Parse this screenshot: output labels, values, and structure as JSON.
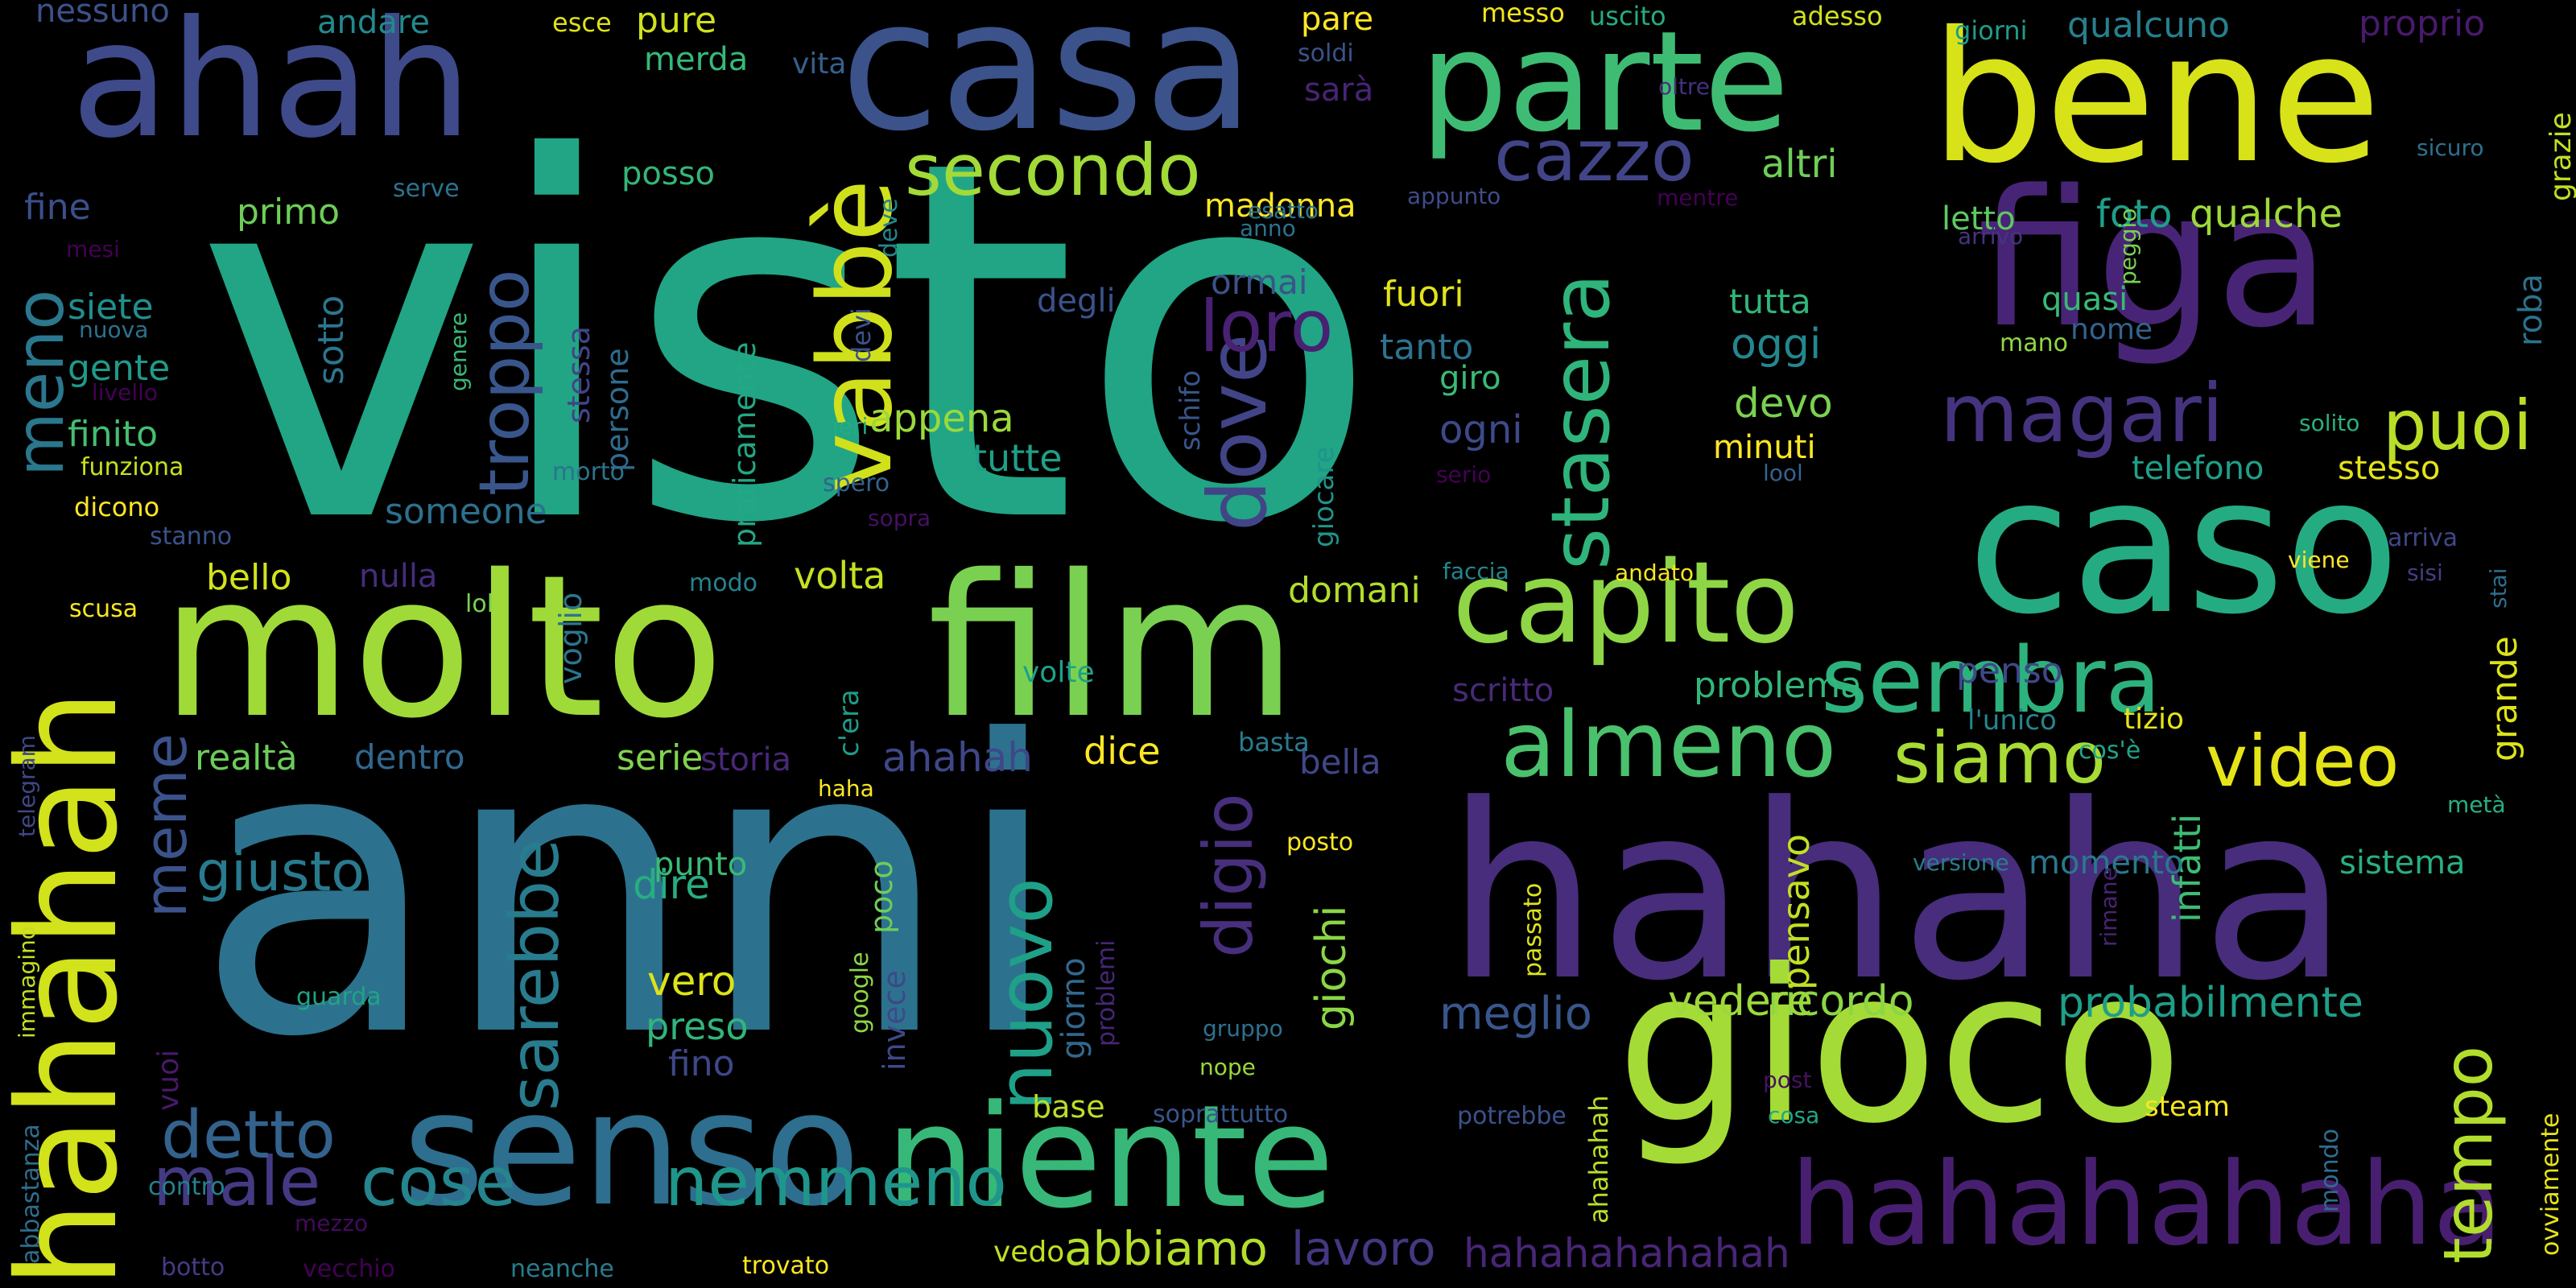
{
  "palette": [
    "#440154",
    "#482878",
    "#3e4a89",
    "#31688e",
    "#26828e",
    "#1f9e89",
    "#35b779",
    "#6ece58",
    "#b5de2b",
    "#fde725"
  ],
  "words": [
    {
      "text": "visto",
      "color": "#21a585"
    },
    {
      "text": "anni",
      "color": "#2c728e"
    },
    {
      "text": "hahaha",
      "color": "#472d7b"
    },
    {
      "text": "molto",
      "color": "#a0da39"
    },
    {
      "text": "film",
      "color": "#7ad151"
    },
    {
      "text": "casa",
      "color": "#3b528b"
    },
    {
      "text": "gioco",
      "color": "#a5db36"
    },
    {
      "text": "caso",
      "color": "#25ab82"
    },
    {
      "text": "figa",
      "color": "#482476"
    },
    {
      "text": "bene",
      "color": "#d8e219"
    },
    {
      "text": "ahah",
      "color": "#3e4a89"
    },
    {
      "text": "senso",
      "color": "#2e6e8e"
    },
    {
      "text": "niente",
      "color": "#37b878"
    },
    {
      "text": "parte",
      "color": "#3fbc73"
    },
    {
      "text": "hahahah",
      "color": "#d2e21b"
    },
    {
      "text": "hahahahaha",
      "color": "#481f70"
    },
    {
      "text": "capito",
      "color": "#8ed645"
    },
    {
      "text": "almeno",
      "color": "#4ac16d"
    },
    {
      "text": "sembra",
      "color": "#2db27d"
    },
    {
      "text": "vabbè",
      "color": "#d0e11c"
    },
    {
      "text": "magari",
      "color": "#46337f"
    },
    {
      "text": "siamo",
      "color": "#a8db34"
    },
    {
      "text": "video",
      "color": "#e5e419"
    },
    {
      "text": "secondo",
      "color": "#a2da37"
    },
    {
      "text": "cazzo",
      "color": "#414487"
    },
    {
      "text": "stasera",
      "color": "#2fb47c"
    },
    {
      "text": "puoi",
      "color": "#bade28"
    },
    {
      "text": "dove",
      "color": "#414487"
    },
    {
      "text": "troppo",
      "color": "#39568c"
    },
    {
      "text": "loro",
      "color": "#482173"
    },
    {
      "text": "meno",
      "color": "#2a778e"
    },
    {
      "text": "male",
      "color": "#443a83"
    },
    {
      "text": "cose",
      "color": "#25848e"
    },
    {
      "text": "nemmeno",
      "color": "#1f968b"
    },
    {
      "text": "tempo",
      "color": "#b2dd2d"
    },
    {
      "text": "nuovo",
      "color": "#1fa088"
    },
    {
      "text": "digio",
      "color": "#472f7d"
    },
    {
      "text": "sarebbe",
      "color": "#287c8e"
    },
    {
      "text": "detto",
      "color": "#33628d"
    },
    {
      "text": "meme",
      "color": "#3b528b"
    },
    {
      "text": "giusto",
      "color": "#297a8e"
    },
    {
      "text": "abbiamo",
      "color": "#b5de2b"
    },
    {
      "text": "lavoro",
      "color": "#453781"
    },
    {
      "text": "hahahahahahah",
      "color": "#482677"
    },
    {
      "text": "ricordo",
      "color": "#8bd646"
    },
    {
      "text": "vedere",
      "color": "#9dd93b"
    },
    {
      "text": "probabilmente",
      "color": "#1f9e89"
    },
    {
      "text": "meglio",
      "color": "#39568c"
    },
    {
      "text": "giochi",
      "color": "#8bd646"
    },
    {
      "text": "pensavo",
      "color": "#c2df23"
    },
    {
      "text": "infatti",
      "color": "#3dbc74"
    },
    {
      "text": "grande",
      "color": "#dde318"
    },
    {
      "text": "sistema",
      "color": "#29af7f"
    },
    {
      "text": "momento",
      "color": "#2a788e"
    },
    {
      "text": "problema",
      "color": "#32b67a"
    },
    {
      "text": "penso",
      "color": "#3f4889"
    },
    {
      "text": "tizio",
      "color": "#e7e419"
    },
    {
      "text": "l'unico",
      "color": "#25848e"
    },
    {
      "text": "scritto",
      "color": "#482979"
    },
    {
      "text": "dice",
      "color": "#fde725"
    },
    {
      "text": "bella",
      "color": "#404688"
    },
    {
      "text": "basta",
      "color": "#297b8e"
    },
    {
      "text": "ahahah",
      "color": "#3f4788"
    },
    {
      "text": "storia",
      "color": "#482878"
    },
    {
      "text": "serie",
      "color": "#81d34d"
    },
    {
      "text": "realtà",
      "color": "#6ccd5a"
    },
    {
      "text": "dentro",
      "color": "#31688e"
    },
    {
      "text": "volta",
      "color": "#c8e020"
    },
    {
      "text": "c'era",
      "color": "#1e9c89"
    },
    {
      "text": "volte",
      "color": "#1fa188"
    },
    {
      "text": "appena",
      "color": "#9bd93c"
    },
    {
      "text": "tutte",
      "color": "#1f9f88"
    },
    {
      "text": "fuori",
      "color": "#e2e418"
    },
    {
      "text": "ormai",
      "color": "#3b528b"
    },
    {
      "text": "tanto",
      "color": "#2c738e"
    },
    {
      "text": "giro",
      "color": "#3aba76"
    },
    {
      "text": "ogni",
      "color": "#3e4989"
    },
    {
      "text": "tutta",
      "color": "#31b57b"
    },
    {
      "text": "oggi",
      "color": "#24878e"
    },
    {
      "text": "devo",
      "color": "#7ad151"
    },
    {
      "text": "minuti",
      "color": "#fde725"
    },
    {
      "text": "altri",
      "color": "#6ece58"
    },
    {
      "text": "madonna",
      "color": "#fde725"
    },
    {
      "text": "foto",
      "color": "#1f9e89"
    },
    {
      "text": "qualche",
      "color": "#9dd93b"
    },
    {
      "text": "letto",
      "color": "#5ec962"
    },
    {
      "text": "telefono",
      "color": "#1fa088"
    },
    {
      "text": "stesso",
      "color": "#e5e419"
    },
    {
      "text": "nome",
      "color": "#33638d"
    },
    {
      "text": "quasi",
      "color": "#38b977"
    },
    {
      "text": "roba",
      "color": "#2c728e"
    },
    {
      "text": "domani",
      "color": "#b2dd2d"
    },
    {
      "text": "bello",
      "color": "#d2e21b"
    },
    {
      "text": "nulla",
      "color": "#472c7a"
    },
    {
      "text": "someone",
      "color": "#2d708e"
    },
    {
      "text": "finito",
      "color": "#44bf70"
    },
    {
      "text": "gente",
      "color": "#1f9a8a"
    },
    {
      "text": "siete",
      "color": "#218f8d"
    },
    {
      "text": "fine",
      "color": "#3c4f8a"
    },
    {
      "text": "primo",
      "color": "#6ece58"
    },
    {
      "text": "sotto",
      "color": "#2a768e"
    },
    {
      "text": "posso",
      "color": "#34b679"
    },
    {
      "text": "vita",
      "color": "#35608d"
    },
    {
      "text": "merda",
      "color": "#37b878"
    },
    {
      "text": "pure",
      "color": "#d0e11c"
    },
    {
      "text": "andare",
      "color": "#23898e"
    },
    {
      "text": "nessuno",
      "color": "#3b528b"
    },
    {
      "text": "esce",
      "color": "#dde318"
    },
    {
      "text": "pare",
      "color": "#fde725"
    },
    {
      "text": "soldi",
      "color": "#3b528b"
    },
    {
      "text": "sarà",
      "color": "#482475"
    },
    {
      "text": "messo",
      "color": "#f1e51d"
    },
    {
      "text": "uscito",
      "color": "#25ac82"
    },
    {
      "text": "adesso",
      "color": "#d2e21b"
    },
    {
      "text": "giorni",
      "color": "#1e9d89"
    },
    {
      "text": "qualcuno",
      "color": "#277f8e"
    },
    {
      "text": "proprio",
      "color": "#481a6c"
    },
    {
      "text": "oltre",
      "color": "#46307e"
    },
    {
      "text": "grazie",
      "color": "#c0df25"
    },
    {
      "text": "sicuro",
      "color": "#2d718e"
    },
    {
      "text": "esatto",
      "color": "#2b748e"
    },
    {
      "text": "appunto",
      "color": "#3e4c8a"
    },
    {
      "text": "anno",
      "color": "#2c728e"
    },
    {
      "text": "mentre",
      "color": "#440154"
    },
    {
      "text": "arrivo",
      "color": "#46337f"
    },
    {
      "text": "peggio",
      "color": "#7ad151"
    },
    {
      "text": "mano",
      "color": "#8fd744"
    },
    {
      "text": "solito",
      "color": "#2ab07f"
    },
    {
      "text": "lool",
      "color": "#33638d"
    },
    {
      "text": "arriva",
      "color": "#3f4788"
    },
    {
      "text": "sisi",
      "color": "#433e85"
    },
    {
      "text": "stai",
      "color": "#2e6e8e"
    },
    {
      "text": "viene",
      "color": "#fde725"
    },
    {
      "text": "andato",
      "color": "#f6e620"
    },
    {
      "text": "faccia",
      "color": "#24868e"
    },
    {
      "text": "serio",
      "color": "#440154"
    },
    {
      "text": "metà",
      "color": "#29af7f"
    },
    {
      "text": "cos'è",
      "color": "#20a386"
    },
    {
      "text": "versione",
      "color": "#287d8e"
    },
    {
      "text": "haha",
      "color": "#fde725"
    },
    {
      "text": "posto",
      "color": "#fbe723"
    },
    {
      "text": "passato",
      "color": "#dde318"
    },
    {
      "text": "rimane",
      "color": "#482374"
    },
    {
      "text": "ovviamente",
      "color": "#e7e419"
    },
    {
      "text": "mondo",
      "color": "#2f6c8e"
    },
    {
      "text": "steam",
      "color": "#f8e621"
    },
    {
      "text": "post",
      "color": "#471063"
    },
    {
      "text": "cosa",
      "color": "#22a785"
    },
    {
      "text": "potrebbe",
      "color": "#3b528b"
    },
    {
      "text": "soprattutto",
      "color": "#39568c"
    },
    {
      "text": "ahahahah",
      "color": "#bade28"
    },
    {
      "text": "nope",
      "color": "#98d83e"
    },
    {
      "text": "gruppo",
      "color": "#2d718e"
    },
    {
      "text": "base",
      "color": "#bade28"
    },
    {
      "text": "vedo",
      "color": "#c2df23"
    },
    {
      "text": "trovato",
      "color": "#fde725"
    },
    {
      "text": "neanche",
      "color": "#287c8e"
    },
    {
      "text": "vecchio",
      "color": "#440154"
    },
    {
      "text": "botto",
      "color": "#443b84"
    },
    {
      "text": "mezzo",
      "color": "#450a5c"
    },
    {
      "text": "contro",
      "color": "#26818e"
    },
    {
      "text": "abbastanza",
      "color": "#2e6d8e"
    },
    {
      "text": "immagino",
      "color": "#c2df23"
    },
    {
      "text": "telegram",
      "color": "#3f4788"
    },
    {
      "text": "guarda",
      "color": "#20a386"
    },
    {
      "text": "google",
      "color": "#8bd646"
    },
    {
      "text": "invece",
      "color": "#3f4889"
    },
    {
      "text": "poco",
      "color": "#6ccd5a"
    },
    {
      "text": "problemi",
      "color": "#482677"
    },
    {
      "text": "giorno",
      "color": "#31688e"
    },
    {
      "text": "vuoi",
      "color": "#48196b"
    },
    {
      "text": "dire",
      "color": "#27ad81"
    },
    {
      "text": "vero",
      "color": "#dde318"
    },
    {
      "text": "preso",
      "color": "#31b57b"
    },
    {
      "text": "fino",
      "color": "#3f4788"
    },
    {
      "text": "punto",
      "color": "#3aba76"
    },
    {
      "text": "voglio",
      "color": "#2b758e"
    },
    {
      "text": "modo",
      "color": "#26828e"
    },
    {
      "text": "lol",
      "color": "#7ad151"
    },
    {
      "text": "scusa",
      "color": "#f8e621"
    },
    {
      "text": "stanno",
      "color": "#3b528b"
    },
    {
      "text": "dicono",
      "color": "#fde725"
    },
    {
      "text": "funziona",
      "color": "#c8e020"
    },
    {
      "text": "morto",
      "color": "#2c738e"
    },
    {
      "text": "stessa",
      "color": "#414487"
    },
    {
      "text": "persone",
      "color": "#2f6c8e"
    },
    {
      "text": "genere",
      "color": "#38b977"
    },
    {
      "text": "praticamente",
      "color": "#22a884"
    },
    {
      "text": "devi",
      "color": "#3a538b"
    },
    {
      "text": "deve",
      "color": "#25858e"
    },
    {
      "text": "ieri",
      "color": "#25ab82"
    },
    {
      "text": "spero",
      "color": "#33638d"
    },
    {
      "text": "sopra",
      "color": "#471063"
    },
    {
      "text": "schifo",
      "color": "#39568c"
    },
    {
      "text": "giocare",
      "color": "#1f948c"
    },
    {
      "text": "degli",
      "color": "#3b528b"
    },
    {
      "text": "serve",
      "color": "#2c728e"
    },
    {
      "text": "mesi",
      "color": "#440154"
    },
    {
      "text": "nuova",
      "color": "#2c728e"
    },
    {
      "text": "livello",
      "color": "#440154"
    }
  ]
}
